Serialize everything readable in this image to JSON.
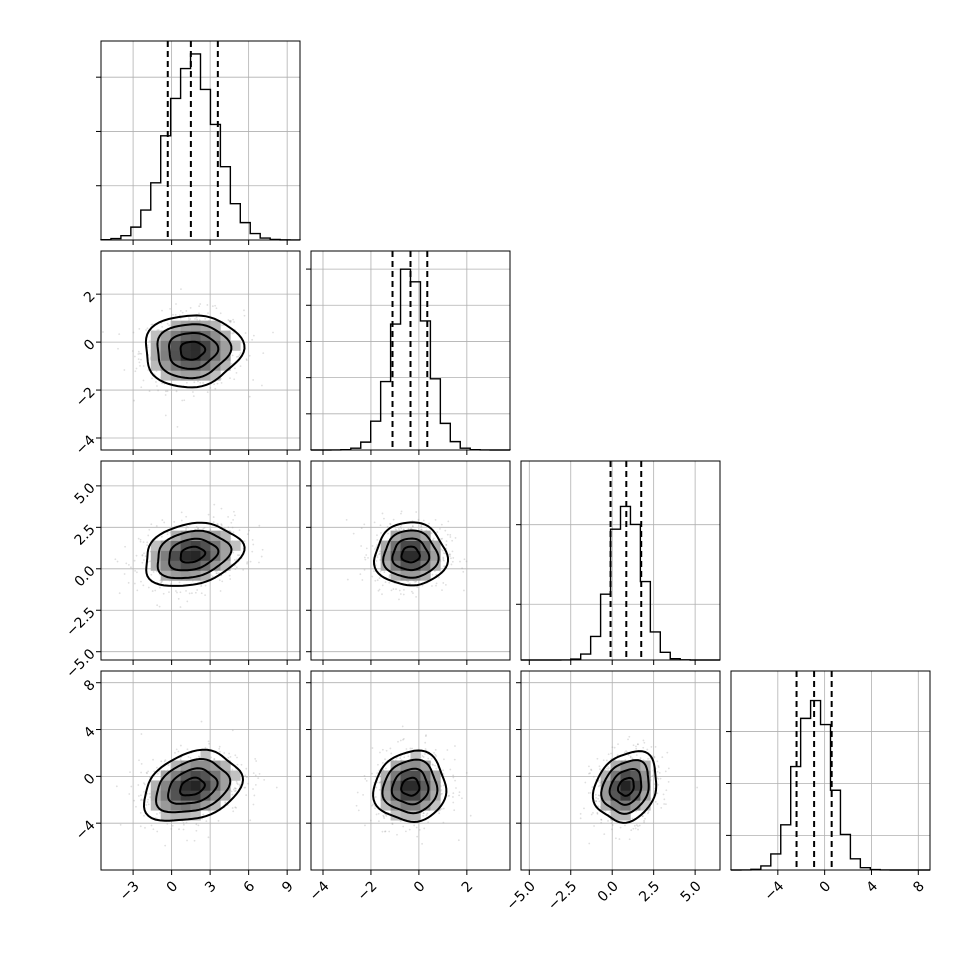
{
  "chart_data": {
    "type": "corner",
    "grid": true,
    "parameters": [
      {
        "range": [
          -5.5,
          10.0
        ],
        "ticks": [
          -3,
          0,
          3,
          6,
          9
        ],
        "tick_labels": [
          "−3",
          "0",
          "3",
          "6",
          "9"
        ],
        "mean": 1.6,
        "sd": 1.9,
        "quantiles": [
          -0.3,
          1.5,
          3.6
        ],
        "hist_peak": 1.1,
        "hist_ticks": [
          0.3,
          0.6,
          0.9
        ]
      },
      {
        "range": [
          -4.5,
          3.8
        ],
        "ticks": [
          -4,
          -2,
          0,
          2
        ],
        "tick_labels": [
          "−4",
          "−2",
          "0",
          "2"
        ],
        "mean": -0.35,
        "sd": 0.75,
        "quantiles": [
          -1.1,
          -0.35,
          0.35
        ],
        "hist_peak": 1.1,
        "hist_ticks": [
          0.2,
          0.4,
          0.6,
          0.8,
          1.0
        ]
      },
      {
        "range": [
          -5.5,
          6.5
        ],
        "ticks": [
          -5.0,
          -2.5,
          0.0,
          2.5,
          5.0
        ],
        "tick_labels": [
          "−5.0",
          "−2.5",
          "0.0",
          "2.5",
          "5.0"
        ],
        "mean": 0.85,
        "sd": 0.95,
        "quantiles": [
          -0.1,
          0.85,
          1.75
        ],
        "hist_peak": 1.25,
        "hist_ticks": [
          0.35,
          0.85
        ]
      },
      {
        "range": [
          -8.0,
          9.0
        ],
        "ticks": [
          -4,
          0,
          4,
          8
        ],
        "tick_labels": [
          "−4",
          "0",
          "4",
          "8"
        ],
        "mean": -0.9,
        "sd": 1.5,
        "quantiles": [
          -2.4,
          -0.9,
          0.6
        ],
        "hist_peak": 1.15,
        "hist_ticks": [
          0.2,
          0.5,
          0.8
        ]
      }
    ],
    "correlations": {
      "1-0": 0.05,
      "2-0": 0.22,
      "2-1": 0.0,
      "3-0": 0.28,
      "3-1": 0.05,
      "3-2": 0.2
    },
    "contour_levels_sigma": [
      0.5,
      1.0,
      1.5,
      2.0
    ]
  }
}
